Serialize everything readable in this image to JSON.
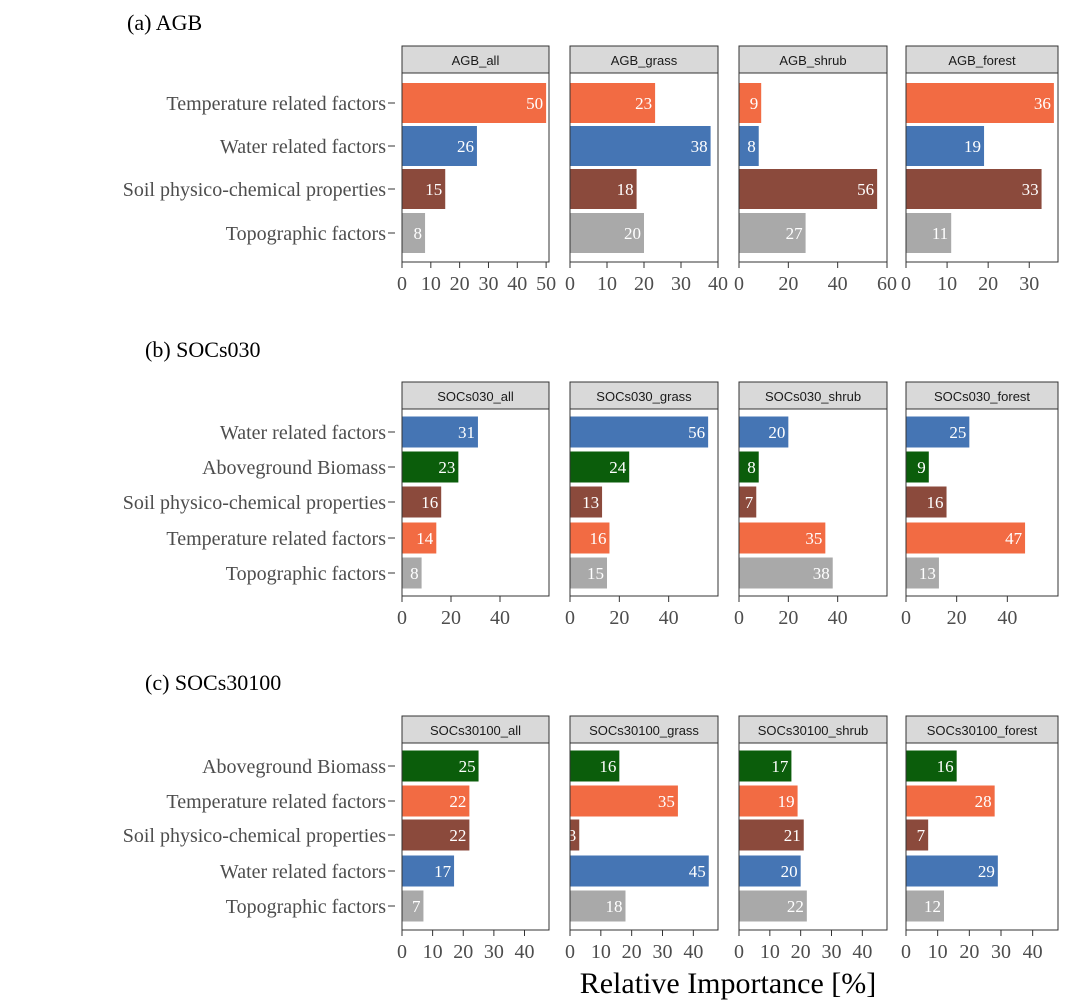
{
  "chart_data": [
    {
      "type": "bar",
      "orientation": "horizontal",
      "title": "(a) AGB",
      "categories": [
        "Temperature related factors",
        "Water related factors",
        "Soil physico-chemical properties",
        "Topographic factors"
      ],
      "facets": [
        {
          "name": "AGB_all",
          "values": [
            50,
            26,
            15,
            8
          ],
          "xticks": [
            0,
            10,
            20,
            30,
            40,
            50
          ],
          "xlim": [
            0,
            51
          ]
        },
        {
          "name": "AGB_grass",
          "values": [
            23,
            38,
            18,
            20
          ],
          "xticks": [
            0,
            10,
            20,
            30,
            40
          ],
          "xlim": [
            0,
            40
          ]
        },
        {
          "name": "AGB_shrub",
          "values": [
            9,
            8,
            56,
            27
          ],
          "xticks": [
            0,
            20,
            40,
            60
          ],
          "xlim": [
            0,
            60
          ]
        },
        {
          "name": "AGB_forest",
          "values": [
            36,
            19,
            33,
            11
          ],
          "xticks": [
            0,
            10,
            20,
            30
          ],
          "xlim": [
            0,
            37
          ]
        }
      ],
      "xlabel": "",
      "grid": false
    },
    {
      "type": "bar",
      "orientation": "horizontal",
      "title": "(b) SOCs030",
      "categories": [
        "Water related factors",
        "Aboveground Biomass",
        "Soil physico-chemical properties",
        "Temperature related factors",
        "Topographic factors"
      ],
      "facets": [
        {
          "name": "SOCs030_all",
          "values": [
            31,
            23,
            16,
            14,
            8
          ],
          "xticks": [
            0,
            20,
            40
          ],
          "xlim": [
            0,
            60
          ]
        },
        {
          "name": "SOCs030_grass",
          "values": [
            56,
            24,
            13,
            16,
            15
          ],
          "xticks": [
            0,
            20,
            40
          ],
          "xlim": [
            0,
            60
          ]
        },
        {
          "name": "SOCs030_shrub",
          "values": [
            20,
            8,
            7,
            35,
            38
          ],
          "xticks": [
            0,
            20,
            40
          ],
          "xlim": [
            0,
            60
          ]
        },
        {
          "name": "SOCs030_forest",
          "values": [
            25,
            9,
            16,
            47,
            13
          ],
          "xticks": [
            0,
            20,
            40
          ],
          "xlim": [
            0,
            60
          ]
        }
      ],
      "xlabel": "",
      "grid": false
    },
    {
      "type": "bar",
      "orientation": "horizontal",
      "title": "(c) SOCs30100",
      "categories": [
        "Aboveground Biomass",
        "Temperature related factors",
        "Soil physico-chemical properties",
        "Water related factors",
        "Topographic factors"
      ],
      "facets": [
        {
          "name": "SOCs30100_all",
          "values": [
            25,
            22,
            22,
            17,
            7
          ],
          "xticks": [
            0,
            10,
            20,
            30,
            40
          ],
          "xlim": [
            0,
            48
          ]
        },
        {
          "name": "SOCs30100_grass",
          "values": [
            16,
            35,
            3,
            45,
            18
          ],
          "xticks": [
            0,
            10,
            20,
            30,
            40
          ],
          "xlim": [
            0,
            48
          ]
        },
        {
          "name": "SOCs30100_shrub",
          "values": [
            17,
            19,
            21,
            20,
            22
          ],
          "xticks": [
            0,
            10,
            20,
            30,
            40
          ],
          "xlim": [
            0,
            48
          ]
        },
        {
          "name": "SOCs30100_forest",
          "values": [
            16,
            28,
            7,
            29,
            12
          ],
          "xticks": [
            0,
            10,
            20,
            30,
            40
          ],
          "xlim": [
            0,
            48
          ]
        }
      ],
      "xlabel": "Relative Importance [%]",
      "grid": false
    }
  ],
  "colors": {
    "Temperature related factors": "#F26B43",
    "Water related factors": "#4575B4",
    "Soil physico-chemical properties": "#8B4A3C",
    "Topographic factors": "#A9A9A9",
    "Aboveground Biomass": "#0B5D0B",
    "strip_fill": "#D9D9D9"
  }
}
